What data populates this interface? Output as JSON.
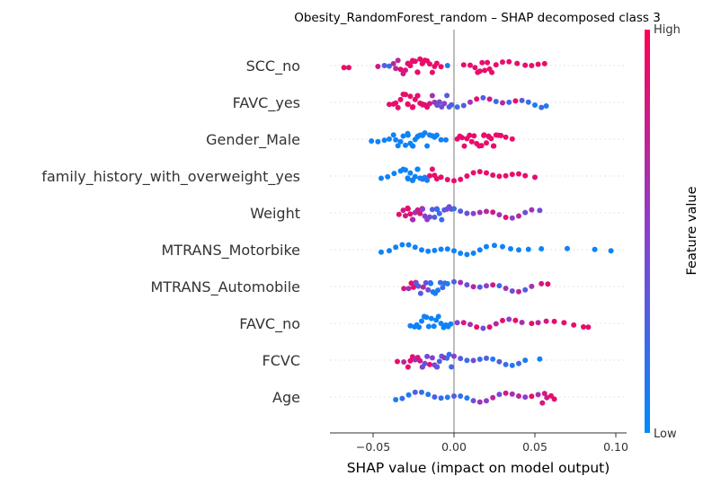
{
  "chart_data": {
    "type": "scatter",
    "subtype": "shap-beeswarm",
    "title": "Obesity_RandomForest_random – SHAP decomposed class 3",
    "xlabel": "SHAP value (impact on model output)",
    "ylabel": "",
    "xlim": [
      -0.077,
      0.102
    ],
    "xticks": [
      {
        "value": -0.05,
        "label": "−0.05"
      },
      {
        "value": 0.0,
        "label": "0.00"
      },
      {
        "value": 0.05,
        "label": "0.05"
      },
      {
        "value": 0.1,
        "label": "0.10"
      }
    ],
    "colorbar": {
      "label": "Feature value",
      "high": "High",
      "low": "Low",
      "low_color": "#008bfb",
      "high_color": "#ff0052"
    },
    "features": [
      {
        "name": "SCC_no",
        "approx_distribution": "most dense positive around 0.01 to 0.03 (high value); sparse negative tail -0.02 to -0.065 (mostly high); low-value points near -0.03 to -0.04",
        "points": [
          [
            -0.068,
            0.9
          ],
          [
            -0.065,
            0.9
          ],
          [
            -0.047,
            0.8
          ],
          [
            -0.043,
            0.3
          ],
          [
            -0.04,
            0.2
          ],
          [
            -0.036,
            0.7
          ],
          [
            -0.033,
            0.9
          ],
          [
            -0.03,
            0.8
          ],
          [
            -0.027,
            0.9
          ],
          [
            -0.024,
            0.9
          ],
          [
            -0.021,
            0.9
          ],
          [
            -0.018,
            0.9
          ],
          [
            -0.015,
            0.9
          ],
          [
            -0.012,
            0.9
          ],
          [
            -0.008,
            0.9
          ],
          [
            -0.004,
            0.1
          ],
          [
            0.006,
            0.9
          ],
          [
            0.01,
            0.9
          ],
          [
            0.013,
            0.9
          ],
          [
            0.016,
            0.9
          ],
          [
            0.019,
            0.9
          ],
          [
            0.022,
            0.9
          ],
          [
            0.026,
            0.9
          ],
          [
            0.03,
            0.9
          ],
          [
            0.034,
            0.9
          ],
          [
            0.039,
            0.9
          ],
          [
            0.044,
            0.9
          ],
          [
            0.048,
            0.9
          ],
          [
            0.052,
            0.9
          ],
          [
            0.056,
            0.9
          ]
        ]
      },
      {
        "name": "FAVC_yes",
        "approx_distribution": "high values dense from -0.04 to 0.0; mixed values cluster near -0.01; low values spread 0.01 to 0.057",
        "points": [
          [
            -0.04,
            0.9
          ],
          [
            -0.036,
            0.9
          ],
          [
            -0.033,
            0.9
          ],
          [
            -0.03,
            0.9
          ],
          [
            -0.027,
            0.9
          ],
          [
            -0.024,
            0.9
          ],
          [
            -0.021,
            0.9
          ],
          [
            -0.018,
            0.9
          ],
          [
            -0.015,
            0.8
          ],
          [
            -0.012,
            0.6
          ],
          [
            -0.009,
            0.4
          ],
          [
            -0.006,
            0.5
          ],
          [
            -0.003,
            0.3
          ],
          [
            0.002,
            0.2
          ],
          [
            0.006,
            0.3
          ],
          [
            0.01,
            0.6
          ],
          [
            0.014,
            0.9
          ],
          [
            0.018,
            0.3
          ],
          [
            0.022,
            0.8
          ],
          [
            0.026,
            0.2
          ],
          [
            0.03,
            0.7
          ],
          [
            0.034,
            0.2
          ],
          [
            0.038,
            0.9
          ],
          [
            0.042,
            0.3
          ],
          [
            0.046,
            0.2
          ],
          [
            0.05,
            0.1
          ],
          [
            0.054,
            0.2
          ],
          [
            0.057,
            0.1
          ]
        ]
      },
      {
        "name": "Gender_Male",
        "approx_distribution": "low values dense -0.05 to -0.005; high values dense 0.0 to 0.037",
        "points": [
          [
            -0.051,
            0.05
          ],
          [
            -0.047,
            0.05
          ],
          [
            -0.043,
            0.05
          ],
          [
            -0.04,
            0.05
          ],
          [
            -0.036,
            0.05
          ],
          [
            -0.033,
            0.05
          ],
          [
            -0.03,
            0.05
          ],
          [
            -0.027,
            0.05
          ],
          [
            -0.024,
            0.05
          ],
          [
            -0.021,
            0.05
          ],
          [
            -0.018,
            0.05
          ],
          [
            -0.015,
            0.05
          ],
          [
            -0.012,
            0.05
          ],
          [
            -0.008,
            0.05
          ],
          [
            -0.005,
            0.1
          ],
          [
            0.002,
            0.9
          ],
          [
            0.005,
            0.9
          ],
          [
            0.008,
            0.9
          ],
          [
            0.011,
            0.9
          ],
          [
            0.014,
            0.9
          ],
          [
            0.017,
            0.9
          ],
          [
            0.02,
            0.9
          ],
          [
            0.023,
            0.9
          ],
          [
            0.026,
            0.9
          ],
          [
            0.029,
            0.9
          ],
          [
            0.032,
            0.9
          ],
          [
            0.036,
            0.9
          ]
        ]
      },
      {
        "name": "family_history_with_overweight_yes",
        "approx_distribution": "low values -0.045 to -0.01; high values dense -0.02 to 0.05",
        "points": [
          [
            -0.045,
            0.05
          ],
          [
            -0.041,
            0.05
          ],
          [
            -0.037,
            0.05
          ],
          [
            -0.033,
            0.05
          ],
          [
            -0.03,
            0.05
          ],
          [
            -0.027,
            0.05
          ],
          [
            -0.024,
            0.05
          ],
          [
            -0.021,
            0.05
          ],
          [
            -0.018,
            0.1
          ],
          [
            -0.015,
            0.9
          ],
          [
            -0.012,
            0.9
          ],
          [
            -0.008,
            0.9
          ],
          [
            -0.004,
            0.9
          ],
          [
            0.0,
            0.9
          ],
          [
            0.004,
            0.9
          ],
          [
            0.008,
            0.9
          ],
          [
            0.012,
            0.9
          ],
          [
            0.016,
            0.9
          ],
          [
            0.02,
            0.9
          ],
          [
            0.024,
            0.9
          ],
          [
            0.028,
            0.9
          ],
          [
            0.032,
            0.9
          ],
          [
            0.036,
            0.9
          ],
          [
            0.04,
            0.9
          ],
          [
            0.044,
            0.9
          ],
          [
            0.05,
            0.9
          ]
        ]
      },
      {
        "name": "Weight",
        "approx_distribution": "mixed values dense -0.035 to 0.01; purple and pink tail to 0.053",
        "points": [
          [
            -0.034,
            0.9
          ],
          [
            -0.03,
            0.8
          ],
          [
            -0.027,
            0.9
          ],
          [
            -0.024,
            0.6
          ],
          [
            -0.021,
            0.8
          ],
          [
            -0.018,
            0.5
          ],
          [
            -0.015,
            0.4
          ],
          [
            -0.012,
            0.3
          ],
          [
            -0.009,
            0.2
          ],
          [
            -0.006,
            0.3
          ],
          [
            -0.003,
            0.4
          ],
          [
            0.0,
            0.2
          ],
          [
            0.004,
            0.3
          ],
          [
            0.008,
            0.4
          ],
          [
            0.012,
            0.5
          ],
          [
            0.016,
            0.6
          ],
          [
            0.02,
            0.7
          ],
          [
            0.024,
            0.8
          ],
          [
            0.028,
            0.6
          ],
          [
            0.032,
            0.9
          ],
          [
            0.036,
            0.5
          ],
          [
            0.04,
            0.7
          ],
          [
            0.044,
            0.4
          ],
          [
            0.048,
            0.6
          ],
          [
            0.053,
            0.4
          ]
        ]
      },
      {
        "name": "MTRANS_Motorbike",
        "approx_distribution": "low values spread -0.045 to 0.055; outliers at 0.07, 0.087, 0.097",
        "points": [
          [
            -0.045,
            0.05
          ],
          [
            -0.04,
            0.05
          ],
          [
            -0.036,
            0.05
          ],
          [
            -0.032,
            0.05
          ],
          [
            -0.028,
            0.05
          ],
          [
            -0.024,
            0.05
          ],
          [
            -0.02,
            0.05
          ],
          [
            -0.016,
            0.05
          ],
          [
            -0.012,
            0.05
          ],
          [
            -0.008,
            0.05
          ],
          [
            -0.004,
            0.05
          ],
          [
            0.0,
            0.05
          ],
          [
            0.004,
            0.05
          ],
          [
            0.008,
            0.05
          ],
          [
            0.012,
            0.05
          ],
          [
            0.016,
            0.05
          ],
          [
            0.02,
            0.05
          ],
          [
            0.025,
            0.05
          ],
          [
            0.03,
            0.05
          ],
          [
            0.035,
            0.05
          ],
          [
            0.04,
            0.05
          ],
          [
            0.046,
            0.05
          ],
          [
            0.054,
            0.05
          ],
          [
            0.07,
            0.05
          ],
          [
            0.087,
            0.05
          ],
          [
            0.097,
            0.05
          ]
        ]
      },
      {
        "name": "MTRANS_Automobile",
        "approx_distribution": "mixed values dense -0.03 to 0.0; tail to 0.06",
        "points": [
          [
            -0.031,
            0.8
          ],
          [
            -0.028,
            0.6
          ],
          [
            -0.025,
            0.9
          ],
          [
            -0.022,
            0.3
          ],
          [
            -0.019,
            0.7
          ],
          [
            -0.016,
            0.4
          ],
          [
            -0.013,
            0.1
          ],
          [
            -0.01,
            0.1
          ],
          [
            -0.007,
            0.2
          ],
          [
            -0.004,
            0.1
          ],
          [
            0.0,
            0.3
          ],
          [
            0.004,
            0.6
          ],
          [
            0.008,
            0.4
          ],
          [
            0.012,
            0.7
          ],
          [
            0.016,
            0.3
          ],
          [
            0.02,
            0.5
          ],
          [
            0.024,
            0.8
          ],
          [
            0.028,
            0.2
          ],
          [
            0.032,
            0.6
          ],
          [
            0.036,
            0.4
          ],
          [
            0.04,
            0.7
          ],
          [
            0.044,
            0.3
          ],
          [
            0.048,
            0.6
          ],
          [
            0.054,
            0.8
          ],
          [
            0.058,
            0.9
          ]
        ]
      },
      {
        "name": "FAVC_no",
        "approx_distribution": "low values dense -0.025 to 0.0; high and purple values spread 0.0 to 0.083",
        "points": [
          [
            -0.027,
            0.05
          ],
          [
            -0.023,
            0.05
          ],
          [
            -0.02,
            0.05
          ],
          [
            -0.017,
            0.05
          ],
          [
            -0.014,
            0.05
          ],
          [
            -0.011,
            0.05
          ],
          [
            -0.008,
            0.05
          ],
          [
            -0.005,
            0.05
          ],
          [
            -0.002,
            0.05
          ],
          [
            0.002,
            0.5
          ],
          [
            0.006,
            0.8
          ],
          [
            0.01,
            0.6
          ],
          [
            0.014,
            0.9
          ],
          [
            0.018,
            0.4
          ],
          [
            0.022,
            0.9
          ],
          [
            0.026,
            0.7
          ],
          [
            0.03,
            0.9
          ],
          [
            0.034,
            0.5
          ],
          [
            0.038,
            0.9
          ],
          [
            0.042,
            0.6
          ],
          [
            0.048,
            0.9
          ],
          [
            0.052,
            0.7
          ],
          [
            0.057,
            0.8
          ],
          [
            0.062,
            0.9
          ],
          [
            0.068,
            0.9
          ],
          [
            0.074,
            0.9
          ],
          [
            0.08,
            0.9
          ],
          [
            0.083,
            0.9
          ]
        ]
      },
      {
        "name": "FCVC",
        "approx_distribution": "mixed values dense -0.035 to 0.01; low values tail to 0.053",
        "points": [
          [
            -0.035,
            0.9
          ],
          [
            -0.031,
            0.7
          ],
          [
            -0.027,
            0.9
          ],
          [
            -0.024,
            0.6
          ],
          [
            -0.021,
            0.8
          ],
          [
            -0.018,
            0.4
          ],
          [
            -0.015,
            0.9
          ],
          [
            -0.012,
            0.5
          ],
          [
            -0.009,
            0.3
          ],
          [
            -0.006,
            0.7
          ],
          [
            -0.003,
            0.2
          ],
          [
            0.0,
            0.5
          ],
          [
            0.004,
            0.3
          ],
          [
            0.008,
            0.2
          ],
          [
            0.012,
            0.4
          ],
          [
            0.016,
            0.2
          ],
          [
            0.02,
            0.3
          ],
          [
            0.024,
            0.1
          ],
          [
            0.028,
            0.3
          ],
          [
            0.032,
            0.2
          ],
          [
            0.036,
            0.1
          ],
          [
            0.04,
            0.2
          ],
          [
            0.044,
            0.1
          ],
          [
            0.053,
            0.05
          ]
        ]
      },
      {
        "name": "Age",
        "approx_distribution": "mixed values dense -0.035 to 0.01; purple and pink tail to 0.062",
        "points": [
          [
            -0.036,
            0.1
          ],
          [
            -0.032,
            0.2
          ],
          [
            -0.028,
            0.1
          ],
          [
            -0.024,
            0.3
          ],
          [
            -0.02,
            0.2
          ],
          [
            -0.016,
            0.1
          ],
          [
            -0.012,
            0.3
          ],
          [
            -0.008,
            0.2
          ],
          [
            -0.004,
            0.1
          ],
          [
            0.0,
            0.3
          ],
          [
            0.004,
            0.2
          ],
          [
            0.008,
            0.1
          ],
          [
            0.012,
            0.4
          ],
          [
            0.016,
            0.6
          ],
          [
            0.02,
            0.5
          ],
          [
            0.024,
            0.7
          ],
          [
            0.028,
            0.4
          ],
          [
            0.032,
            0.8
          ],
          [
            0.036,
            0.6
          ],
          [
            0.04,
            0.7
          ],
          [
            0.044,
            0.5
          ],
          [
            0.048,
            0.9
          ],
          [
            0.052,
            0.6
          ],
          [
            0.056,
            0.8
          ],
          [
            0.06,
            0.9
          ],
          [
            0.062,
            0.9
          ]
        ]
      }
    ]
  }
}
